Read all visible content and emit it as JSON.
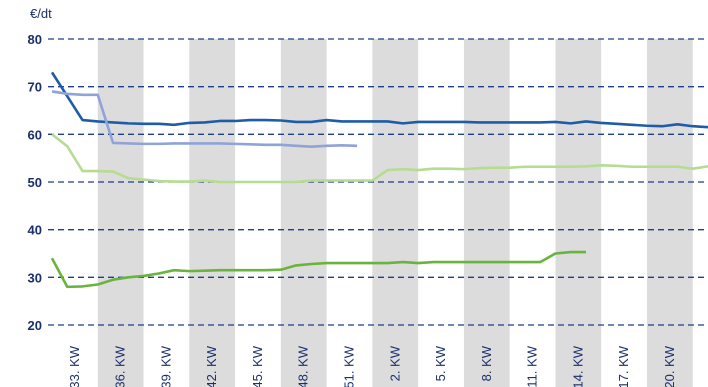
{
  "chart_data": {
    "type": "line",
    "y_label": "€/dt",
    "categories": [
      "33. KW",
      null,
      null,
      "36. KW",
      null,
      null,
      "39. KW",
      null,
      null,
      "42. KW",
      null,
      null,
      "45. KW",
      null,
      null,
      "48. KW",
      null,
      null,
      "51. KW",
      null,
      null,
      "2. KW",
      null,
      null,
      "5. KW",
      null,
      null,
      "8. KW",
      null,
      null,
      "11. KW",
      null,
      null,
      "14. KW",
      null,
      null,
      "17. KW",
      null,
      null,
      "20. KW",
      null,
      null,
      null,
      null
    ],
    "series": [
      {
        "color": "#1f5ca8",
        "values": [
          73,
          68,
          63,
          62.7,
          62.5,
          62.3,
          62.2,
          62.2,
          62,
          62.4,
          62.5,
          62.8,
          62.8,
          63,
          63,
          62.9,
          62.6,
          62.6,
          63,
          62.7,
          62.7,
          62.7,
          62.7,
          62.3,
          62.6,
          62.6,
          62.6,
          62.6,
          62.5,
          62.5,
          62.5,
          62.5,
          62.5,
          62.6,
          62.3,
          62.7,
          62.4,
          62.2,
          62,
          61.8,
          61.7,
          62.1,
          61.7,
          61.5
        ]
      },
      {
        "color": "#8fa3d8",
        "values": [
          69,
          68.5,
          68.3,
          68.3,
          58.2,
          58.1,
          58,
          58,
          58.1,
          58.1,
          58.1,
          58.1,
          58,
          57.9,
          57.8,
          57.8,
          57.6,
          57.4,
          57.6,
          57.7,
          57.6,
          null,
          null,
          null,
          null,
          null,
          null,
          null,
          null,
          null,
          null,
          null,
          null,
          null,
          null,
          null,
          null,
          null,
          null,
          null,
          null,
          null,
          null,
          null
        ]
      },
      {
        "color": "#b6dc92",
        "values": [
          60,
          57.5,
          52.3,
          52.3,
          52.2,
          50.8,
          50.5,
          50.2,
          50.1,
          50.1,
          50.3,
          50,
          50,
          50,
          50,
          50,
          50,
          50.3,
          50.3,
          50.3,
          50.3,
          50.3,
          52.5,
          52.7,
          52.5,
          52.8,
          52.8,
          52.7,
          52.9,
          53,
          53,
          53.2,
          53.2,
          53.2,
          53.2,
          53.3,
          53.5,
          53.4,
          53.2,
          53.2,
          53.2,
          53.2,
          52.8,
          53.3
        ]
      },
      {
        "color": "#6ab33e",
        "values": [
          34,
          28,
          28.1,
          28.5,
          29.5,
          30,
          30.3,
          30.8,
          31.5,
          31.3,
          31.4,
          31.5,
          31.5,
          31.5,
          31.5,
          31.6,
          32.5,
          32.8,
          33,
          33,
          33,
          33,
          33,
          33.2,
          33,
          33.2,
          33.2,
          33.2,
          33.2,
          33.2,
          33.2,
          33.2,
          33.2,
          35,
          35.3,
          35.3,
          null,
          null,
          null,
          null,
          null,
          null,
          null,
          null
        ]
      }
    ],
    "ylim": [
      20,
      80
    ],
    "yticks": [
      20,
      30,
      40,
      50,
      60,
      70,
      80
    ],
    "grid": true
  }
}
